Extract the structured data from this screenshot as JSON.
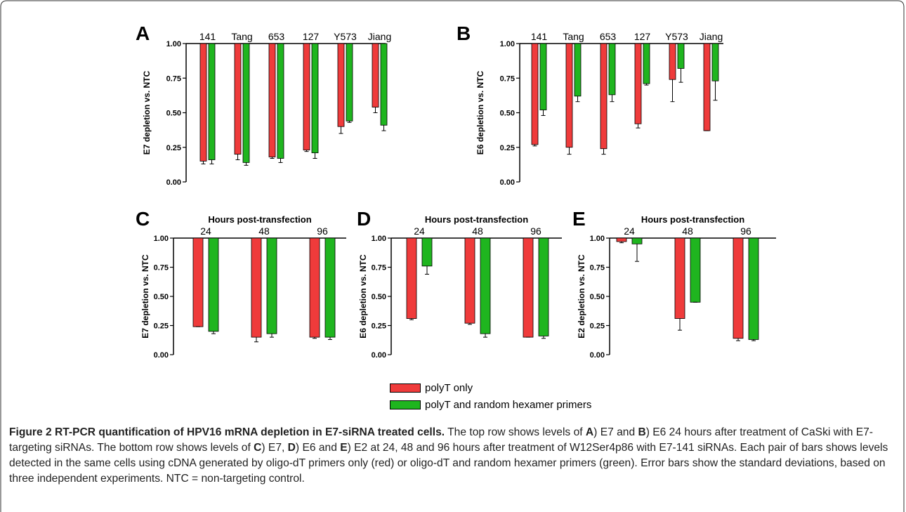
{
  "legend": {
    "polyT": "polyT only",
    "random": "polyT and random hexamer primers"
  },
  "colors": {
    "polyT": "#ef3b3b",
    "random": "#1fb51f"
  },
  "caption": {
    "figure_label": "Figure 2",
    "title": "RT-PCR quantification of HPV16 mRNA depletion in E7-siRNA treated cells.",
    "p1": " The top row shows levels of ",
    "A": "A",
    "p2": ") E7 and ",
    "B": "B",
    "p3": ") E6 24 hours after treatment of CaSki with E7-targeting siRNAs. The bottom row shows levels of ",
    "C": "C",
    "p4": ") E7, ",
    "D": "D",
    "p5": ") E6 and ",
    "E": "E",
    "p6": ") E2 at 24, 48 and 96 hours after treatment of W12Ser4p86 with E7-141 siRNAs. Each pair of bars shows levels detected in the same cells using cDNA generated by oligo-dT primers only (red) or oligo-dT and random hexamer primers (green). Error bars show the standard deviations, based on three independent experiments. NTC = non-targeting control."
  },
  "chart_data": [
    {
      "panel": "A",
      "type": "bar",
      "title": "",
      "xlabel": "",
      "ylabel": "E7 depletion vs. NTC",
      "ylim": [
        0,
        1
      ],
      "yticks": [
        "0.00",
        "0.25",
        "0.50",
        "0.75",
        "1.00"
      ],
      "categories": [
        "141",
        "Tang",
        "653",
        "127",
        "Y573",
        "Jiang"
      ],
      "series": [
        {
          "name": "polyT only",
          "values": [
            0.15,
            0.2,
            0.18,
            0.23,
            0.4,
            0.54
          ],
          "errors": [
            0.02,
            0.04,
            0.01,
            0.01,
            0.05,
            0.04
          ]
        },
        {
          "name": "polyT and random hexamer primers",
          "values": [
            0.16,
            0.14,
            0.17,
            0.21,
            0.44,
            0.41
          ],
          "errors": [
            0.03,
            0.02,
            0.03,
            0.04,
            0.01,
            0.04
          ]
        }
      ]
    },
    {
      "panel": "B",
      "type": "bar",
      "title": "",
      "xlabel": "",
      "ylabel": "E6 depletion vs. NTC",
      "ylim": [
        0,
        1
      ],
      "yticks": [
        "0.00",
        "0.25",
        "0.50",
        "0.75",
        "1.00"
      ],
      "categories": [
        "141",
        "Tang",
        "653",
        "127",
        "Y573",
        "Jiang"
      ],
      "series": [
        {
          "name": "polyT only",
          "values": [
            0.27,
            0.25,
            0.24,
            0.42,
            0.74,
            0.37
          ],
          "errors": [
            0.01,
            0.05,
            0.04,
            0.03,
            0.16,
            0.0
          ]
        },
        {
          "name": "polyT and random hexamer primers",
          "values": [
            0.52,
            0.62,
            0.63,
            0.71,
            0.82,
            0.73
          ],
          "errors": [
            0.04,
            0.04,
            0.05,
            0.01,
            0.1,
            0.14
          ]
        }
      ]
    },
    {
      "panel": "C",
      "type": "bar",
      "title": "Hours post-transfection",
      "xlabel": "",
      "ylabel": "E7 depletion vs. NTC",
      "ylim": [
        0,
        1
      ],
      "yticks": [
        "0.00",
        "0.25",
        "0.50",
        "0.75",
        "1.00"
      ],
      "categories": [
        "24",
        "48",
        "96"
      ],
      "series": [
        {
          "name": "polyT only",
          "values": [
            0.24,
            0.15,
            0.15
          ],
          "errors": [
            0.0,
            0.04,
            0.01
          ]
        },
        {
          "name": "polyT and random hexamer primers",
          "values": [
            0.2,
            0.18,
            0.15
          ],
          "errors": [
            0.02,
            0.03,
            0.02
          ]
        }
      ]
    },
    {
      "panel": "D",
      "type": "bar",
      "title": "Hours post-transfection",
      "xlabel": "",
      "ylabel": "E6 depletion vs. NTC",
      "ylim": [
        0,
        1
      ],
      "yticks": [
        "0.00",
        "0.25",
        "0.50",
        "0.75",
        "1.00"
      ],
      "categories": [
        "24",
        "48",
        "96"
      ],
      "series": [
        {
          "name": "polyT only",
          "values": [
            0.31,
            0.27,
            0.15
          ],
          "errors": [
            0.01,
            0.01,
            0.0
          ]
        },
        {
          "name": "polyT and random hexamer primers",
          "values": [
            0.76,
            0.18,
            0.16
          ],
          "errors": [
            0.07,
            0.03,
            0.02
          ]
        }
      ]
    },
    {
      "panel": "E",
      "type": "bar",
      "title": "Hours post-transfection",
      "xlabel": "",
      "ylabel": "E2 depletion vs. NTC",
      "ylim": [
        0,
        1
      ],
      "yticks": [
        "0.00",
        "0.25",
        "0.50",
        "0.75",
        "1.00"
      ],
      "categories": [
        "24",
        "48",
        "96"
      ],
      "series": [
        {
          "name": "polyT only",
          "values": [
            0.97,
            0.31,
            0.14
          ],
          "errors": [
            0.01,
            0.1,
            0.02
          ]
        },
        {
          "name": "polyT and random hexamer primers",
          "values": [
            0.95,
            0.45,
            0.13
          ],
          "errors": [
            0.15,
            0.0,
            0.01
          ]
        }
      ]
    }
  ]
}
